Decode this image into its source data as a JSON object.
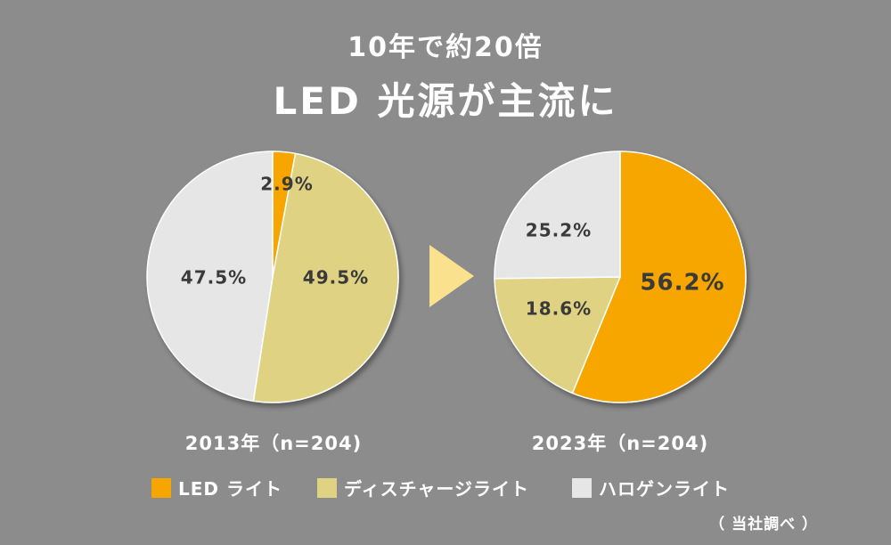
{
  "title_line1": "10年で約20倍",
  "title_line2": "LED 光源が主流に",
  "colors": {
    "background": "#8c8c8c",
    "led": "#f7a600",
    "discharge": "#dfd282",
    "halogen": "#e6e6e6",
    "arrow": "#f9e18d"
  },
  "chart_data": [
    {
      "type": "pie",
      "caption": "2013年（n=204)",
      "slices": [
        {
          "name": "LED ライト",
          "value": 2.9,
          "label": "2.9%"
        },
        {
          "name": "ディスチャージライト",
          "value": 49.5,
          "label": "49.5%"
        },
        {
          "name": "ハロゲンライト",
          "value": 47.5,
          "label": "47.5%"
        }
      ]
    },
    {
      "type": "pie",
      "caption": "2023年（n=204)",
      "slices": [
        {
          "name": "LED ライト",
          "value": 56.2,
          "label": "56.2%"
        },
        {
          "name": "ディスチャージライト",
          "value": 18.6,
          "label": "18.6%"
        },
        {
          "name": "ハロゲンライト",
          "value": 25.2,
          "label": "25.2%"
        }
      ]
    }
  ],
  "legend": [
    {
      "label": "LED ライト",
      "color": "#f7a600"
    },
    {
      "label": "ディスチャージライト",
      "color": "#dfd282"
    },
    {
      "label": "ハロゲンライト",
      "color": "#e6e6e6"
    }
  ],
  "source": "（ 当社調べ ）"
}
